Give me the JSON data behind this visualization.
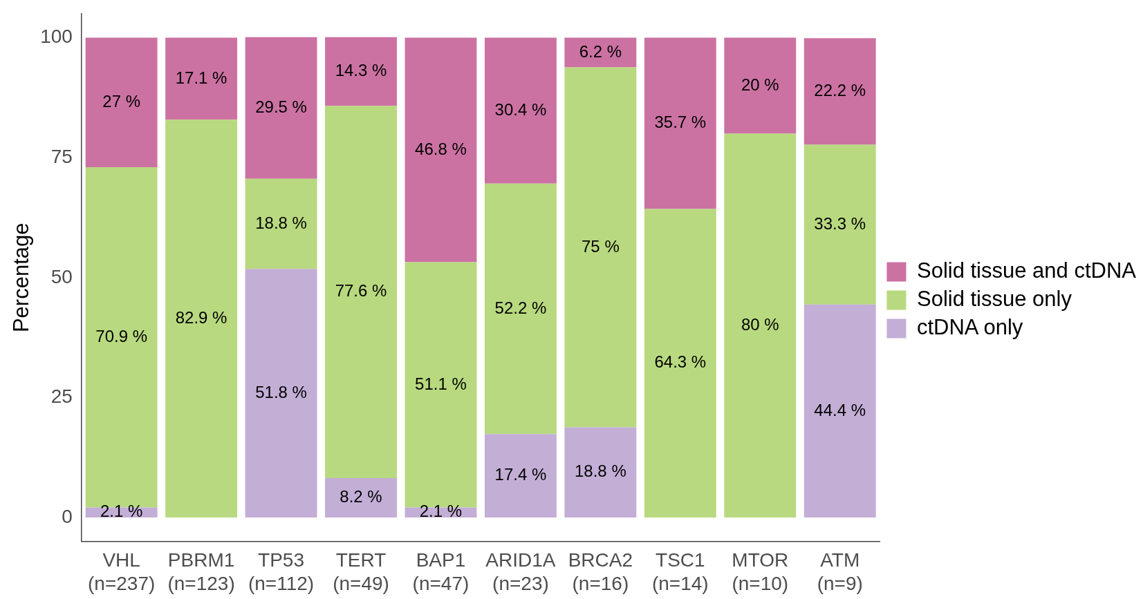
{
  "chart_data": {
    "type": "bar",
    "stacked": true,
    "ylabel": "Percentage",
    "ylim": [
      -5,
      105
    ],
    "yticks": [
      0,
      25,
      50,
      75,
      100
    ],
    "grid": false,
    "legend": "right",
    "categories": [
      "VHL\n(n=237)",
      "PBRM1\n(n=123)",
      "TP53\n(n=112)",
      "TERT\n(n=49)",
      "BAP1\n(n=47)",
      "ARID1A\n(n=23)",
      "BRCA2\n(n=16)",
      "TSC1\n(n=14)",
      "MTOR\n(n=10)",
      "ATM\n(n=9)"
    ],
    "series": [
      {
        "name": "ctDNA only",
        "color": "#c3aed6",
        "values": [
          2.1,
          0,
          51.8,
          8.2,
          2.1,
          17.4,
          18.8,
          0,
          0,
          44.4
        ],
        "value_labels": [
          "2.1 %",
          null,
          "51.8 %",
          "8.2 %",
          "2.1 %",
          "17.4 %",
          "18.8 %",
          null,
          null,
          "44.4 %"
        ]
      },
      {
        "name": "Solid tissue only",
        "color": "#b8d97f",
        "values": [
          70.9,
          82.9,
          18.8,
          77.6,
          51.1,
          52.2,
          75,
          64.3,
          80,
          33.3
        ],
        "value_labels": [
          "70.9 %",
          "82.9 %",
          "18.8 %",
          "77.6 %",
          "51.1 %",
          "52.2 %",
          "75 %",
          "64.3 %",
          "80 %",
          "33.3 %"
        ]
      },
      {
        "name": "Solid tissue and ctDNA",
        "color": "#cc72a3",
        "values": [
          27,
          17.1,
          29.5,
          14.3,
          46.8,
          30.4,
          6.2,
          35.7,
          20,
          22.2
        ],
        "value_labels": [
          "27 %",
          "17.1 %",
          "29.5 %",
          "14.3 %",
          "46.8 %",
          "30.4 %",
          "6.2 %",
          "35.7 %",
          "20 %",
          "22.2 %"
        ]
      }
    ]
  }
}
